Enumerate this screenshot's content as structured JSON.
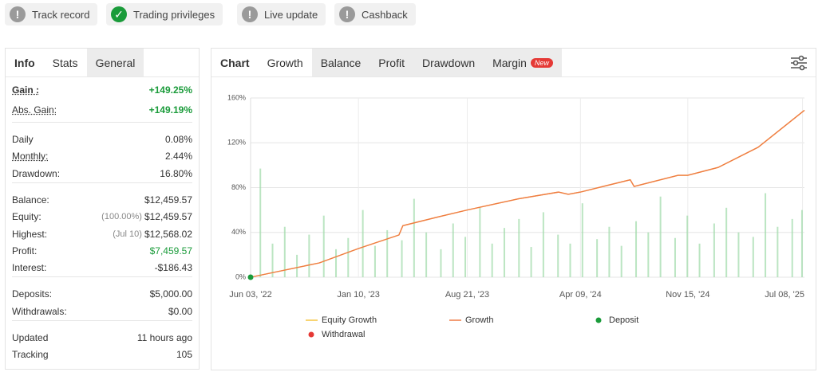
{
  "badges": [
    {
      "label": "Track record",
      "status": "warn"
    },
    {
      "label": "Trading privileges",
      "status": "ok"
    },
    {
      "label": "Live update",
      "status": "warn"
    },
    {
      "label": "Cashback",
      "status": "warn"
    }
  ],
  "stats": {
    "tabs": [
      "Info",
      "Stats",
      "General"
    ],
    "groups": [
      [
        {
          "label": "Gain :",
          "value": "+149.25%",
          "color": "#1a9b3a",
          "hint": true,
          "bold": true
        },
        {
          "label": "Abs. Gain:",
          "value": "+149.19%",
          "color": "#1a9b3a",
          "hint": true
        }
      ],
      [
        {
          "label": "Daily",
          "value": "0.08%"
        },
        {
          "label": "Monthly:",
          "value": "2.44%",
          "hint": true
        },
        {
          "label": "Drawdown:",
          "value": "16.80%"
        }
      ],
      [
        {
          "label": "Balance:",
          "value": "$12,459.57"
        },
        {
          "label": "Equity:",
          "note": "(100.00%)",
          "value": "$12,459.57"
        },
        {
          "label": "Highest:",
          "note": "(Jul 10)",
          "value": "$12,568.02"
        },
        {
          "label": "Profit:",
          "value": "$7,459.57",
          "color": "#1a9b3a"
        },
        {
          "label": "Interest:",
          "value": "-$186.43"
        }
      ],
      [
        {
          "label": "Deposits:",
          "value": "$5,000.00"
        },
        {
          "label": "Withdrawals:",
          "value": "$0.00"
        }
      ],
      [
        {
          "label": "Updated",
          "value": "11 hours ago"
        },
        {
          "label": "Tracking",
          "value": "105"
        }
      ]
    ]
  },
  "chart_panel": {
    "tabs": [
      "Chart",
      "Growth",
      "Balance",
      "Profit",
      "Drawdown",
      "Margin"
    ],
    "new_badge": "New"
  },
  "chart_data": {
    "type": "line",
    "x": [
      0,
      141,
      221,
      304,
      312,
      386,
      444,
      549,
      631,
      651,
      676,
      778,
      786,
      876,
      896,
      958,
      1040,
      1135
    ],
    "series": [
      {
        "name": "Equity Growth",
        "color": "#f5c542",
        "values": [
          0,
          12.8,
          25.6,
          37.7,
          46,
          54,
          60,
          70,
          76,
          74,
          76,
          87,
          81,
          91,
          91,
          98,
          116,
          149
        ]
      },
      {
        "name": "Growth",
        "color": "#ef7b45",
        "values": [
          0,
          12.8,
          25.6,
          37.7,
          46,
          54,
          60,
          70,
          76,
          74,
          76,
          87,
          81,
          91,
          91,
          98,
          116,
          149
        ]
      }
    ],
    "markers": [
      {
        "name": "Withdrawal",
        "color": "#e53935",
        "x": [],
        "values": []
      },
      {
        "name": "Deposit",
        "color": "#1a9b3a",
        "x": [
          0
        ],
        "values": [
          0
        ]
      }
    ],
    "activity": {
      "color": "#9edaa8",
      "x": [
        20,
        45,
        70,
        95,
        120,
        150,
        175,
        200,
        230,
        255,
        280,
        310,
        335,
        360,
        390,
        415,
        440,
        470,
        495,
        520,
        550,
        575,
        600,
        630,
        655,
        680,
        710,
        735,
        760,
        790,
        815,
        840,
        870,
        895,
        920,
        950,
        975,
        1000,
        1030,
        1055,
        1080,
        1110,
        1130
      ],
      "values": [
        97,
        30,
        45,
        20,
        38,
        55,
        25,
        35,
        60,
        28,
        42,
        33,
        70,
        40,
        25,
        48,
        36,
        62,
        30,
        44,
        52,
        27,
        58,
        38,
        30,
        66,
        34,
        45,
        28,
        50,
        40,
        72,
        35,
        55,
        30,
        48,
        62,
        40,
        36,
        75,
        45,
        52,
        60
      ]
    },
    "xlim": [
      0,
      1135
    ],
    "xticks": [
      {
        "value": 0,
        "label": "Jun 03, '22"
      },
      {
        "value": 221,
        "label": "Jan 10, '23"
      },
      {
        "value": 444,
        "label": "Aug 21, '23"
      },
      {
        "value": 676,
        "label": "Apr 09, '24"
      },
      {
        "value": 896,
        "label": "Nov 15, '24"
      },
      {
        "value": 1131,
        "label": "Jul 08, '25"
      }
    ],
    "ylim": [
      0,
      160
    ],
    "yticks": [
      {
        "value": 0,
        "label": "0%"
      },
      {
        "value": 40,
        "label": "40%"
      },
      {
        "value": 80,
        "label": "80%"
      },
      {
        "value": 120,
        "label": "120%"
      },
      {
        "value": 160,
        "label": "160%"
      }
    ],
    "grid": true
  }
}
